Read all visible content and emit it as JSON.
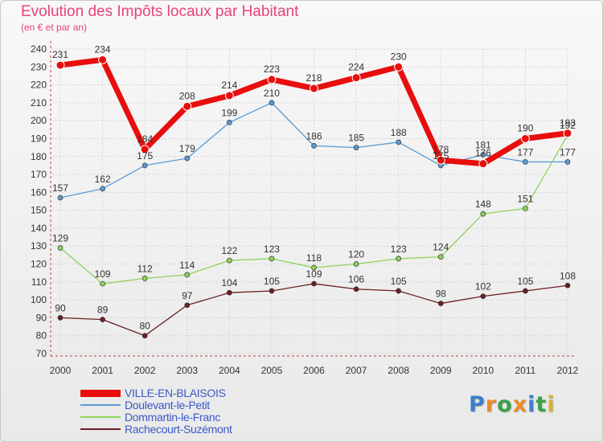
{
  "header": {
    "title": "Evolution des Impôts locaux par Habitant",
    "subtitle": "(en € et par an)"
  },
  "logo": {
    "text": "Proxiti",
    "colors": [
      "#3f7ec9",
      "#e98b2b",
      "#3aa24a",
      "#e98b2b",
      "#3f7ec9",
      "#3aa24a",
      "#d9b32a"
    ]
  },
  "chart_data": {
    "type": "line",
    "categories": [
      "2000",
      "2001",
      "2002",
      "2003",
      "2004",
      "2005",
      "2006",
      "2007",
      "2008",
      "2009",
      "2010",
      "2011",
      "2012"
    ],
    "ylim": [
      70,
      240
    ],
    "yticks": [
      70,
      80,
      90,
      100,
      110,
      120,
      130,
      140,
      150,
      160,
      170,
      180,
      190,
      200,
      210,
      220,
      230,
      240
    ],
    "grid": true,
    "legend_position": "bottom-left",
    "series": [
      {
        "name": "Doulevant-le-Petit",
        "color": "#5b9bd5",
        "width": 1.3,
        "values": [
          157,
          162,
          175,
          179,
          199,
          210,
          186,
          185,
          188,
          175,
          181,
          177,
          177
        ],
        "labels": [
          "157",
          "162",
          "175",
          "179",
          "199",
          "210",
          "186",
          "185",
          "188",
          "175",
          "181",
          "177",
          "177"
        ]
      },
      {
        "name": "Dommartin-le-Franc",
        "color": "#8ed35a",
        "width": 1.3,
        "values": [
          129,
          109,
          112,
          114,
          122,
          123,
          118,
          120,
          123,
          124,
          148,
          151,
          192
        ],
        "labels": [
          "129",
          "109",
          "112",
          "114",
          "122",
          "123",
          "118",
          "120",
          "123",
          "124",
          "148",
          "151",
          "192"
        ]
      },
      {
        "name": "Rachecourt-Suzémont",
        "color": "#6b1f24",
        "width": 1.3,
        "values": [
          90,
          89,
          80,
          97,
          104,
          105,
          109,
          106,
          105,
          98,
          102,
          105,
          108
        ],
        "labels": [
          "90",
          "89",
          "80",
          "97",
          "104",
          "105",
          "109",
          "106",
          "105",
          "98",
          "102",
          "105",
          "108"
        ]
      },
      {
        "name": "VILLE-EN-BLAISOIS",
        "color": "#e80e0e",
        "width": 7,
        "values": [
          231,
          234,
          184,
          208,
          214,
          223,
          218,
          224,
          230,
          178,
          176,
          190,
          193
        ],
        "labels": [
          "231",
          "234",
          "184",
          "208",
          "214",
          "223",
          "218",
          "224",
          "230",
          "178",
          "176",
          "190",
          "193"
        ]
      }
    ],
    "legend_order": [
      "VILLE-EN-BLAISOIS",
      "Doulevant-le-Petit",
      "Dommartin-le-Franc",
      "Rachecourt-Suzémont"
    ]
  }
}
